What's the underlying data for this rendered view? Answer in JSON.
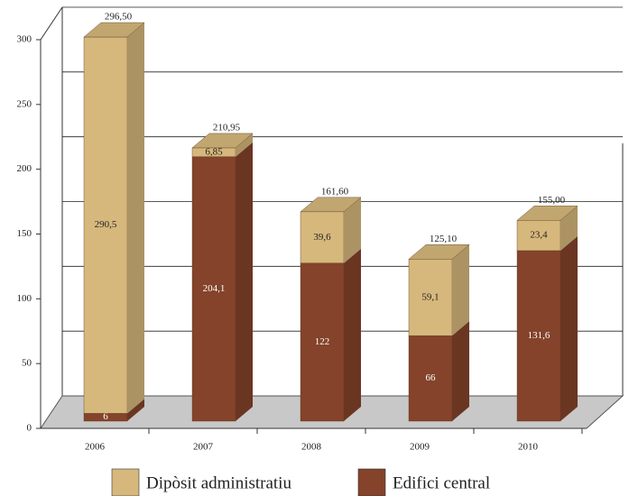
{
  "chart_data": {
    "type": "bar3d_stacked",
    "categories": [
      "2006",
      "2007",
      "2008",
      "2009",
      "2010"
    ],
    "series": [
      {
        "name": "Edifici central",
        "color": "#84432a",
        "values": [
          6,
          204.1,
          122,
          66,
          131.6
        ],
        "value_labels": [
          "6",
          "204,1",
          "122",
          "66",
          "131,6"
        ]
      },
      {
        "name": "Dipòsit administratiu",
        "color": "#d6b87c",
        "values": [
          290.5,
          6.85,
          39.6,
          59.1,
          23.4
        ],
        "value_labels": [
          "290,5",
          "6,85",
          "39,6",
          "59,1",
          "23,4"
        ]
      }
    ],
    "totals": [
      296.5,
      210.95,
      161.6,
      125.1,
      155
    ],
    "total_labels": [
      "296,50",
      "210,95",
      "161,60",
      "125,10",
      "155,00"
    ],
    "ylim": [
      0,
      300
    ],
    "yticks": [
      0,
      50,
      100,
      150,
      200,
      250,
      300
    ],
    "grid": true
  }
}
